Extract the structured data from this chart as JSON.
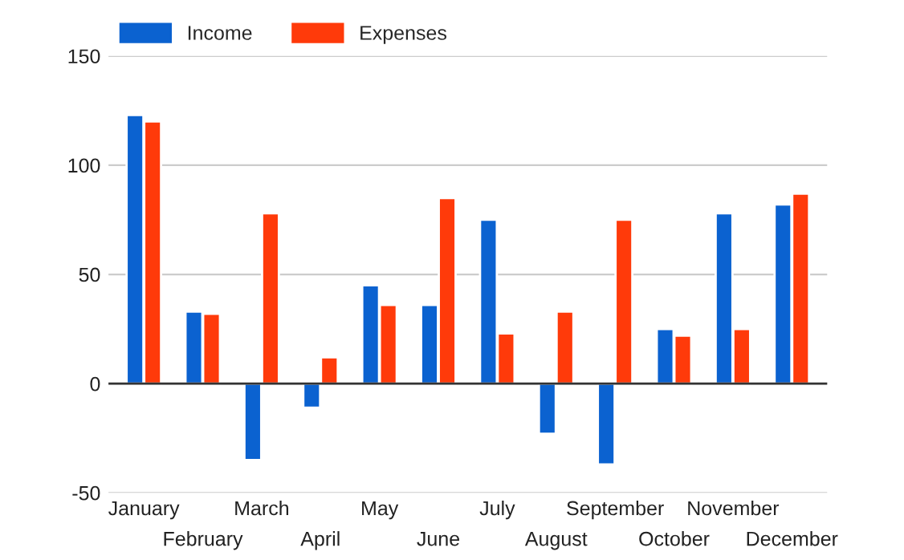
{
  "chart_data": {
    "type": "bar",
    "categories": [
      "January",
      "February",
      "March",
      "April",
      "May",
      "June",
      "July",
      "August",
      "September",
      "October",
      "November",
      "December"
    ],
    "series": [
      {
        "name": "Income",
        "color": "#0b62d0",
        "values": [
          123,
          33,
          -35,
          -11,
          45,
          36,
          75,
          -23,
          -37,
          25,
          78,
          82
        ]
      },
      {
        "name": "Expenses",
        "color": "#ff3a0a",
        "values": [
          120,
          32,
          78,
          12,
          36,
          85,
          23,
          33,
          75,
          22,
          25,
          87
        ]
      }
    ],
    "ylim": [
      -50,
      150
    ],
    "yticks": [
      -50,
      0,
      50,
      100,
      150
    ],
    "grid": "y",
    "legend": "top left"
  }
}
